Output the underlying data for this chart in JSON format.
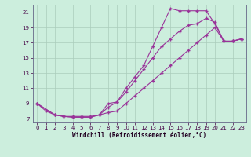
{
  "bg_color": "#cceedd",
  "grid_color": "#aaccbb",
  "line_color": "#993399",
  "xlabel": "Windchill (Refroidissement éolien,°C)",
  "xlim": [
    -0.5,
    23.5
  ],
  "ylim": [
    6.5,
    22.0
  ],
  "xticks": [
    0,
    1,
    2,
    3,
    4,
    5,
    6,
    7,
    8,
    9,
    10,
    11,
    12,
    13,
    14,
    15,
    16,
    17,
    18,
    19,
    20,
    21,
    22,
    23
  ],
  "yticks": [
    7,
    9,
    11,
    13,
    15,
    17,
    19,
    21
  ],
  "line1_x": [
    0,
    1,
    2,
    3,
    4,
    5,
    6,
    7,
    8,
    9,
    10,
    11,
    12,
    13,
    14,
    15,
    16,
    17,
    18,
    19,
    20,
    21,
    22,
    23
  ],
  "line1_y": [
    9.0,
    8.0,
    7.5,
    7.3,
    7.3,
    7.3,
    7.3,
    7.5,
    9.0,
    9.2,
    11.0,
    12.5,
    14.0,
    16.5,
    19.0,
    21.5,
    21.2,
    21.2,
    21.2,
    21.2,
    19.5,
    17.2,
    17.2,
    17.5
  ],
  "line2_x": [
    0,
    2,
    3,
    4,
    5,
    6,
    7,
    8,
    9,
    10,
    11,
    12,
    13,
    14,
    15,
    16,
    17,
    18,
    19,
    20,
    21,
    22,
    23
  ],
  "line2_y": [
    9.0,
    7.5,
    7.3,
    7.2,
    7.2,
    7.2,
    7.5,
    8.5,
    9.2,
    10.5,
    12.0,
    13.5,
    15.0,
    16.5,
    17.5,
    18.5,
    19.3,
    19.5,
    20.2,
    19.7,
    17.2,
    17.2,
    17.5
  ],
  "line3_x": [
    0,
    2,
    3,
    4,
    5,
    6,
    7,
    8,
    9,
    10,
    11,
    12,
    13,
    14,
    15,
    16,
    17,
    18,
    19,
    20,
    21,
    22,
    23
  ],
  "line3_y": [
    9.0,
    7.5,
    7.3,
    7.2,
    7.2,
    7.2,
    7.5,
    7.8,
    8.0,
    9.0,
    10.0,
    11.0,
    12.0,
    13.0,
    14.0,
    15.0,
    16.0,
    17.0,
    18.0,
    19.0,
    17.2,
    17.2,
    17.5
  ]
}
